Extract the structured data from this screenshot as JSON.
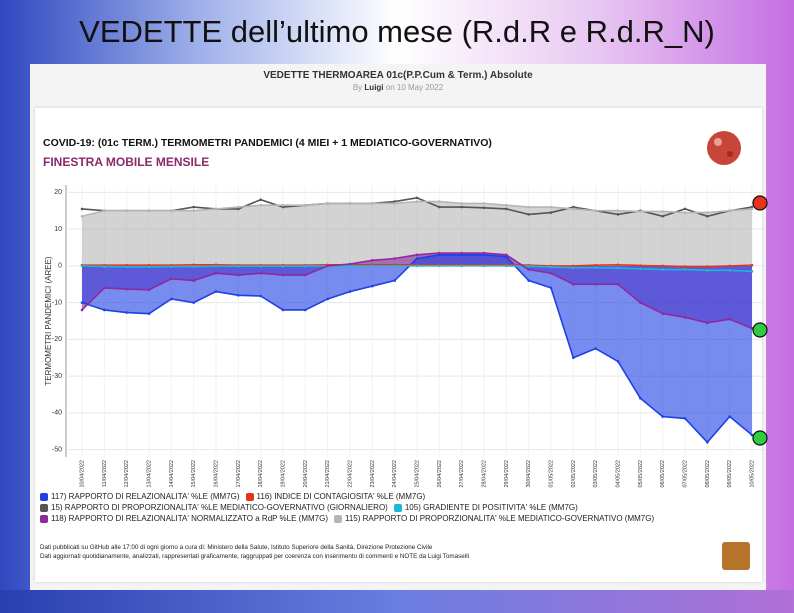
{
  "slide": {
    "title": "VEDETTE dell’ultimo mese (R.d.R e R.d.R_N)"
  },
  "post": {
    "title": "VEDETTE THERMOAREA 01c(P.P.Cum & Term.) Absolute",
    "by": "By",
    "author": "Luigi",
    "date": "on 10 May 2022"
  },
  "chart_data": {
    "type": "line",
    "title": "COVID-19: (01c TERM.) TERMOMETRI PANDEMICI (4 MIEI + 1 MEDIATICO-GOVERNATIVO)",
    "subtitle": "FINESTRA MOBILE MENSILE",
    "y_label": "TERMOMETRI PANDEMICI (AREE)",
    "x": [
      "10/04/2022",
      "11/04/2022",
      "12/04/2022",
      "13/04/2022",
      "14/04/2022",
      "15/04/2022",
      "16/04/2022",
      "17/04/2022",
      "18/04/2022",
      "19/04/2022",
      "20/04/2022",
      "21/04/2022",
      "22/04/2022",
      "23/04/2022",
      "24/04/2022",
      "25/04/2022",
      "26/04/2022",
      "27/04/2022",
      "28/04/2022",
      "29/04/2022",
      "30/04/2022",
      "01/05/2022",
      "02/05/2022",
      "03/05/2022",
      "04/05/2022",
      "05/05/2022",
      "06/05/2022",
      "07/05/2022",
      "08/05/2022",
      "09/05/2022",
      "10/05/2022"
    ],
    "ylim": [
      -52,
      22
    ],
    "yticks": [
      -50,
      -40,
      -30,
      -20,
      -10,
      0,
      10,
      20
    ],
    "grid": true,
    "series": [
      {
        "name": "117) RAPPORTO DI RELAZIONALITA' %LE (MM7G)",
        "color": "#1e40e6",
        "area": true,
        "values": [
          -10,
          -12,
          -12.7,
          -13,
          -9,
          -10,
          -7,
          -8,
          -8.2,
          -12,
          -12,
          -9,
          -7,
          -5.5,
          -4,
          2,
          3,
          3,
          3,
          2.5,
          -4,
          -6,
          -25,
          -22.5,
          -26,
          -36,
          -41,
          -41.5,
          -48,
          -41,
          -46
        ]
      },
      {
        "name": "116) INDICE DI CONTAGIOSITA' %LE (MM7G)",
        "color": "#e8321c",
        "area": false,
        "values": [
          0.2,
          0.2,
          0.2,
          0.2,
          0.2,
          0.3,
          0.3,
          0.2,
          0.2,
          0.2,
          0.2,
          0.3,
          0.3,
          0.3,
          0.3,
          0.3,
          0.3,
          0.3,
          0.3,
          0.3,
          0.2,
          0,
          0,
          0.2,
          0.3,
          0.1,
          0,
          -0.2,
          -0.2,
          0,
          0.2
        ]
      },
      {
        "name": "15) RAPPORTO DI PROPORZIONALITA' %LE MEDIATICO-GOVERNATIVO (GIORNALIERO)",
        "color": "#555555",
        "area": false,
        "values": [
          15.5,
          15,
          15,
          15,
          15,
          16,
          15.5,
          15.5,
          18,
          16,
          16.5,
          17,
          17,
          17,
          17.5,
          18.5,
          16,
          16,
          15.8,
          15.5,
          14,
          14.5,
          16,
          15,
          14,
          15,
          13.5,
          15.5,
          13.5,
          15,
          16
        ]
      },
      {
        "name": "105) GRADIENTE DI POSITIVITA' %LE (MM7G)",
        "color": "#19b8d8",
        "area": false,
        "values": [
          0,
          -0.2,
          -0.3,
          -0.3,
          -0.2,
          -0.2,
          -0.1,
          -0.1,
          -0.1,
          -0.1,
          -0.1,
          0,
          0,
          0,
          0,
          0,
          0,
          0,
          0,
          0,
          -0.1,
          -0.3,
          -0.5,
          -0.5,
          -0.6,
          -0.8,
          -1,
          -1,
          -1.2,
          -1.2,
          -1.5
        ]
      },
      {
        "name": "118) RAPPORTO DI RELAZIONALITA' NORMALIZZATO a RdP %LE (MM7G)",
        "color": "#8e2a9e",
        "area": true,
        "values": [
          -12,
          -6,
          -6.3,
          -6.5,
          -3.5,
          -4,
          -2,
          -2.5,
          -2,
          -2.5,
          -2.5,
          0,
          0.5,
          1.5,
          2,
          3,
          3.5,
          3.5,
          3.5,
          3,
          -1,
          -2,
          -5,
          -5,
          -5,
          -10,
          -13,
          -14,
          -15.5,
          -14.5,
          -17
        ]
      },
      {
        "name": "115) RAPPORTO DI PROPORZIONALITA' %LE MEDIATICO-GOVERNATIVO (MM7G)",
        "color": "#b5b5b5",
        "area": true,
        "values": [
          13.5,
          15,
          15,
          15,
          15,
          15,
          15.5,
          16,
          16.5,
          16.5,
          16.5,
          17,
          17,
          17,
          17,
          17.5,
          17.5,
          17,
          17,
          16.5,
          16,
          16,
          15.5,
          15,
          15,
          14.8,
          14.8,
          14.5,
          14.5,
          15,
          15.5
        ]
      }
    ]
  },
  "footer": [
    "Dati pubblicati su GitHub alle 17:00 di ogni giorno a cura di: Ministero della Salute, Istituto Superiore della Sanità, Direzione Protezione Civile",
    "Dati aggiornati quotidianamente, analizzati, rappresentati graficamente, raggruppati per coerenza con inserimento di commenti e NOTE da Luigi Tomaselli"
  ]
}
